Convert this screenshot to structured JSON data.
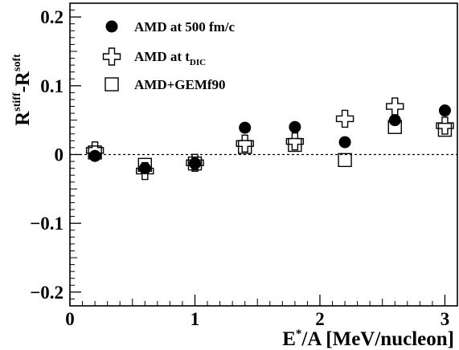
{
  "chart_data": {
    "type": "scatter",
    "xlabel_main": "E",
    "xlabel_sup": "*",
    "xlabel_rest": "/A [MeV/nucleon]",
    "ylabel_r1": "R",
    "ylabel_sup1": "stiff",
    "ylabel_mid": "-R",
    "ylabel_sup2": "soft",
    "xlim": [
      0,
      3.1
    ],
    "ylim": [
      -0.22,
      0.22
    ],
    "xticks": [
      {
        "value": 0,
        "label": "0"
      },
      {
        "value": 1,
        "label": "1"
      },
      {
        "value": 2,
        "label": "2"
      },
      {
        "value": 3,
        "label": "3"
      }
    ],
    "yticks": [
      {
        "value": -0.2,
        "label": "−0.2"
      },
      {
        "value": -0.1,
        "label": "−0.1"
      },
      {
        "value": 0,
        "label": "0"
      },
      {
        "value": 0.1,
        "label": "0.1"
      },
      {
        "value": 0.2,
        "label": "0.2"
      }
    ],
    "reference_line": 0,
    "legend_position": "top-left",
    "series": [
      {
        "name": "AMD at 500 fm/c",
        "marker": "filled-circle",
        "x": [
          0.2,
          0.6,
          1.0,
          1.4,
          1.8,
          2.2,
          2.6,
          3.0
        ],
        "y": [
          -0.002,
          -0.02,
          -0.013,
          0.039,
          0.04,
          0.018,
          0.05,
          0.064
        ]
      },
      {
        "name": "AMD at t",
        "name_sub": "DIC",
        "marker": "open-cross",
        "x": [
          0.2,
          0.6,
          1.0,
          1.4,
          1.8,
          2.2,
          2.6,
          3.0
        ],
        "y": [
          0.006,
          -0.024,
          -0.012,
          0.016,
          0.019,
          0.052,
          0.07,
          0.042
        ]
      },
      {
        "name": "AMD+GEMf90",
        "marker": "open-square",
        "x": [
          0.2,
          0.6,
          1.0,
          1.4,
          1.8,
          2.2,
          2.6,
          3.0
        ],
        "y": [
          0.003,
          -0.015,
          -0.013,
          0.011,
          0.014,
          -0.008,
          0.04,
          0.036
        ]
      }
    ]
  }
}
